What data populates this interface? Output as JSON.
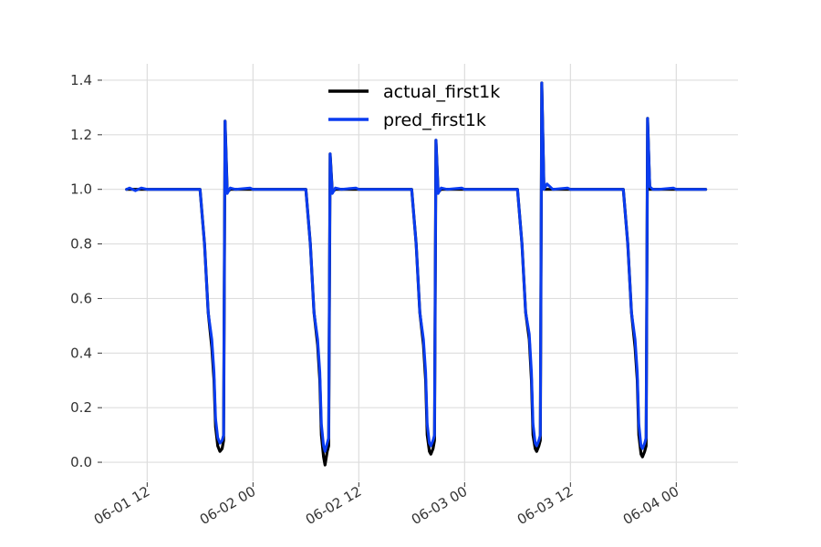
{
  "chart_data": {
    "type": "line",
    "title": "",
    "xlabel": "",
    "ylabel": "",
    "xlim": [
      "2024-06-01T07:00",
      "2024-06-04T07:00"
    ],
    "ylim": [
      -0.07,
      1.46
    ],
    "grid": true,
    "legend_position": "top-center",
    "x_ticks": [
      {
        "value": "2024-06-01T12:00",
        "label": "06-01 12"
      },
      {
        "value": "2024-06-02T00:00",
        "label": "06-02 00"
      },
      {
        "value": "2024-06-02T12:00",
        "label": "06-02 12"
      },
      {
        "value": "2024-06-03T00:00",
        "label": "06-03 00"
      },
      {
        "value": "2024-06-03T12:00",
        "label": "06-03 12"
      },
      {
        "value": "2024-06-04T00:00",
        "label": "06-04 00"
      }
    ],
    "y_ticks": [
      {
        "value": 0.0,
        "label": "0.0"
      },
      {
        "value": 0.2,
        "label": "0.2"
      },
      {
        "value": 0.4,
        "label": "0.4"
      },
      {
        "value": 0.6,
        "label": "0.6"
      },
      {
        "value": 0.8,
        "label": "0.8"
      },
      {
        "value": 1.0,
        "label": "1.0"
      },
      {
        "value": 1.2,
        "label": "1.2"
      },
      {
        "value": 1.4,
        "label": "1.4"
      }
    ],
    "series": [
      {
        "name": "actual_first1k",
        "color": "#000000",
        "points": [
          [
            "2024-06-01T09:40",
            1.0
          ],
          [
            "2024-06-01T15:40",
            1.0
          ],
          [
            "2024-06-01T18:00",
            1.0
          ],
          [
            "2024-06-01T18:30",
            0.8
          ],
          [
            "2024-06-01T18:55",
            0.55
          ],
          [
            "2024-06-01T19:20",
            0.42
          ],
          [
            "2024-06-01T19:35",
            0.3
          ],
          [
            "2024-06-01T19:45",
            0.13
          ],
          [
            "2024-06-01T20:00",
            0.06
          ],
          [
            "2024-06-01T20:15",
            0.04
          ],
          [
            "2024-06-01T20:30",
            0.05
          ],
          [
            "2024-06-01T20:40",
            0.08
          ],
          [
            "2024-06-01T20:50",
            1.25
          ],
          [
            "2024-06-01T21:05",
            0.99
          ],
          [
            "2024-06-01T21:25",
            1.0
          ],
          [
            "2024-06-02T00:00",
            1.0
          ],
          [
            "2024-06-02T06:00",
            1.0
          ],
          [
            "2024-06-02T06:30",
            0.8
          ],
          [
            "2024-06-02T06:55",
            0.55
          ],
          [
            "2024-06-02T07:20",
            0.43
          ],
          [
            "2024-06-02T07:35",
            0.3
          ],
          [
            "2024-06-02T07:45",
            0.1
          ],
          [
            "2024-06-02T08:00",
            0.02
          ],
          [
            "2024-06-02T08:10",
            -0.01
          ],
          [
            "2024-06-02T08:25",
            0.04
          ],
          [
            "2024-06-02T08:35",
            0.06
          ],
          [
            "2024-06-02T08:45",
            1.13
          ],
          [
            "2024-06-02T09:00",
            0.99
          ],
          [
            "2024-06-02T09:20",
            1.0
          ],
          [
            "2024-06-02T12:00",
            1.0
          ],
          [
            "2024-06-02T18:00",
            1.0
          ],
          [
            "2024-06-02T18:30",
            0.8
          ],
          [
            "2024-06-02T18:55",
            0.55
          ],
          [
            "2024-06-02T19:20",
            0.43
          ],
          [
            "2024-06-02T19:35",
            0.3
          ],
          [
            "2024-06-02T19:45",
            0.1
          ],
          [
            "2024-06-02T20:00",
            0.04
          ],
          [
            "2024-06-02T20:10",
            0.03
          ],
          [
            "2024-06-02T20:25",
            0.05
          ],
          [
            "2024-06-02T20:35",
            0.08
          ],
          [
            "2024-06-02T20:45",
            1.18
          ],
          [
            "2024-06-02T21:00",
            0.99
          ],
          [
            "2024-06-02T21:20",
            1.0
          ],
          [
            "2024-06-03T00:00",
            1.0
          ],
          [
            "2024-06-03T06:00",
            1.0
          ],
          [
            "2024-06-03T06:30",
            0.8
          ],
          [
            "2024-06-03T06:55",
            0.55
          ],
          [
            "2024-06-03T07:20",
            0.45
          ],
          [
            "2024-06-03T07:35",
            0.3
          ],
          [
            "2024-06-03T07:45",
            0.1
          ],
          [
            "2024-06-03T08:00",
            0.05
          ],
          [
            "2024-06-03T08:10",
            0.04
          ],
          [
            "2024-06-03T08:25",
            0.06
          ],
          [
            "2024-06-03T08:35",
            0.08
          ],
          [
            "2024-06-03T08:45",
            1.39
          ],
          [
            "2024-06-03T09:00",
            1.0
          ],
          [
            "2024-06-03T09:20",
            1.0
          ],
          [
            "2024-06-03T12:00",
            1.0
          ],
          [
            "2024-06-03T18:00",
            1.0
          ],
          [
            "2024-06-03T18:30",
            0.8
          ],
          [
            "2024-06-03T18:55",
            0.55
          ],
          [
            "2024-06-03T19:20",
            0.42
          ],
          [
            "2024-06-03T19:35",
            0.3
          ],
          [
            "2024-06-03T19:45",
            0.1
          ],
          [
            "2024-06-03T20:00",
            0.03
          ],
          [
            "2024-06-03T20:10",
            0.02
          ],
          [
            "2024-06-03T20:25",
            0.04
          ],
          [
            "2024-06-03T20:35",
            0.06
          ],
          [
            "2024-06-03T20:45",
            1.26
          ],
          [
            "2024-06-03T21:00",
            1.0
          ],
          [
            "2024-06-03T21:20",
            1.0
          ],
          [
            "2024-06-04T00:00",
            1.0
          ],
          [
            "2024-06-04T03:20",
            1.0
          ]
        ]
      },
      {
        "name": "pred_first1k",
        "color": "#0a3cf0",
        "points": [
          [
            "2024-06-01T09:40",
            1.0
          ],
          [
            "2024-06-01T10:00",
            1.005
          ],
          [
            "2024-06-01T10:40",
            0.995
          ],
          [
            "2024-06-01T11:20",
            1.005
          ],
          [
            "2024-06-01T12:00",
            1.0
          ],
          [
            "2024-06-01T15:40",
            1.0
          ],
          [
            "2024-06-01T18:00",
            1.0
          ],
          [
            "2024-06-01T18:30",
            0.8
          ],
          [
            "2024-06-01T18:55",
            0.55
          ],
          [
            "2024-06-01T19:20",
            0.45
          ],
          [
            "2024-06-01T19:35",
            0.33
          ],
          [
            "2024-06-01T19:45",
            0.16
          ],
          [
            "2024-06-01T20:00",
            0.09
          ],
          [
            "2024-06-01T20:15",
            0.07
          ],
          [
            "2024-06-01T20:30",
            0.08
          ],
          [
            "2024-06-01T20:40",
            0.1
          ],
          [
            "2024-06-01T20:50",
            1.25
          ],
          [
            "2024-06-01T21:05",
            0.985
          ],
          [
            "2024-06-01T21:25",
            1.005
          ],
          [
            "2024-06-01T22:00",
            1.0
          ],
          [
            "2024-06-01T23:40",
            1.005
          ],
          [
            "2024-06-02T00:00",
            1.0
          ],
          [
            "2024-06-02T06:00",
            1.0
          ],
          [
            "2024-06-02T06:30",
            0.8
          ],
          [
            "2024-06-02T06:55",
            0.55
          ],
          [
            "2024-06-02T07:20",
            0.45
          ],
          [
            "2024-06-02T07:35",
            0.33
          ],
          [
            "2024-06-02T07:45",
            0.14
          ],
          [
            "2024-06-02T08:00",
            0.06
          ],
          [
            "2024-06-02T08:10",
            0.04
          ],
          [
            "2024-06-02T08:25",
            0.07
          ],
          [
            "2024-06-02T08:35",
            0.09
          ],
          [
            "2024-06-02T08:45",
            1.13
          ],
          [
            "2024-06-02T09:00",
            0.985
          ],
          [
            "2024-06-02T09:20",
            1.005
          ],
          [
            "2024-06-02T10:00",
            1.0
          ],
          [
            "2024-06-02T11:40",
            1.005
          ],
          [
            "2024-06-02T12:00",
            1.0
          ],
          [
            "2024-06-02T18:00",
            1.0
          ],
          [
            "2024-06-02T18:30",
            0.8
          ],
          [
            "2024-06-02T18:55",
            0.55
          ],
          [
            "2024-06-02T19:20",
            0.45
          ],
          [
            "2024-06-02T19:35",
            0.33
          ],
          [
            "2024-06-02T19:45",
            0.14
          ],
          [
            "2024-06-02T20:00",
            0.07
          ],
          [
            "2024-06-02T20:10",
            0.06
          ],
          [
            "2024-06-02T20:25",
            0.08
          ],
          [
            "2024-06-02T20:35",
            0.1
          ],
          [
            "2024-06-02T20:45",
            1.18
          ],
          [
            "2024-06-02T21:00",
            0.985
          ],
          [
            "2024-06-02T21:20",
            1.005
          ],
          [
            "2024-06-02T22:00",
            1.0
          ],
          [
            "2024-06-02T23:40",
            1.005
          ],
          [
            "2024-06-03T00:00",
            1.0
          ],
          [
            "2024-06-03T06:00",
            1.0
          ],
          [
            "2024-06-03T06:30",
            0.8
          ],
          [
            "2024-06-03T06:55",
            0.55
          ],
          [
            "2024-06-03T07:20",
            0.47
          ],
          [
            "2024-06-03T07:35",
            0.33
          ],
          [
            "2024-06-03T07:45",
            0.14
          ],
          [
            "2024-06-03T08:00",
            0.07
          ],
          [
            "2024-06-03T08:10",
            0.06
          ],
          [
            "2024-06-03T08:25",
            0.08
          ],
          [
            "2024-06-03T08:35",
            0.1
          ],
          [
            "2024-06-03T08:45",
            1.39
          ],
          [
            "2024-06-03T09:00",
            1.0
          ],
          [
            "2024-06-03T09:20",
            1.02
          ],
          [
            "2024-06-03T10:00",
            1.0
          ],
          [
            "2024-06-03T11:40",
            1.005
          ],
          [
            "2024-06-03T12:00",
            1.0
          ],
          [
            "2024-06-03T18:00",
            1.0
          ],
          [
            "2024-06-03T18:30",
            0.8
          ],
          [
            "2024-06-03T18:55",
            0.55
          ],
          [
            "2024-06-03T19:20",
            0.45
          ],
          [
            "2024-06-03T19:35",
            0.33
          ],
          [
            "2024-06-03T19:45",
            0.14
          ],
          [
            "2024-06-03T20:00",
            0.06
          ],
          [
            "2024-06-03T20:10",
            0.05
          ],
          [
            "2024-06-03T20:25",
            0.07
          ],
          [
            "2024-06-03T20:35",
            0.09
          ],
          [
            "2024-06-03T20:45",
            1.26
          ],
          [
            "2024-06-03T21:00",
            1.01
          ],
          [
            "2024-06-03T21:20",
            1.0
          ],
          [
            "2024-06-03T22:00",
            1.0
          ],
          [
            "2024-06-03T23:40",
            1.005
          ],
          [
            "2024-06-04T00:00",
            1.0
          ],
          [
            "2024-06-04T03:20",
            1.0
          ]
        ]
      }
    ]
  }
}
